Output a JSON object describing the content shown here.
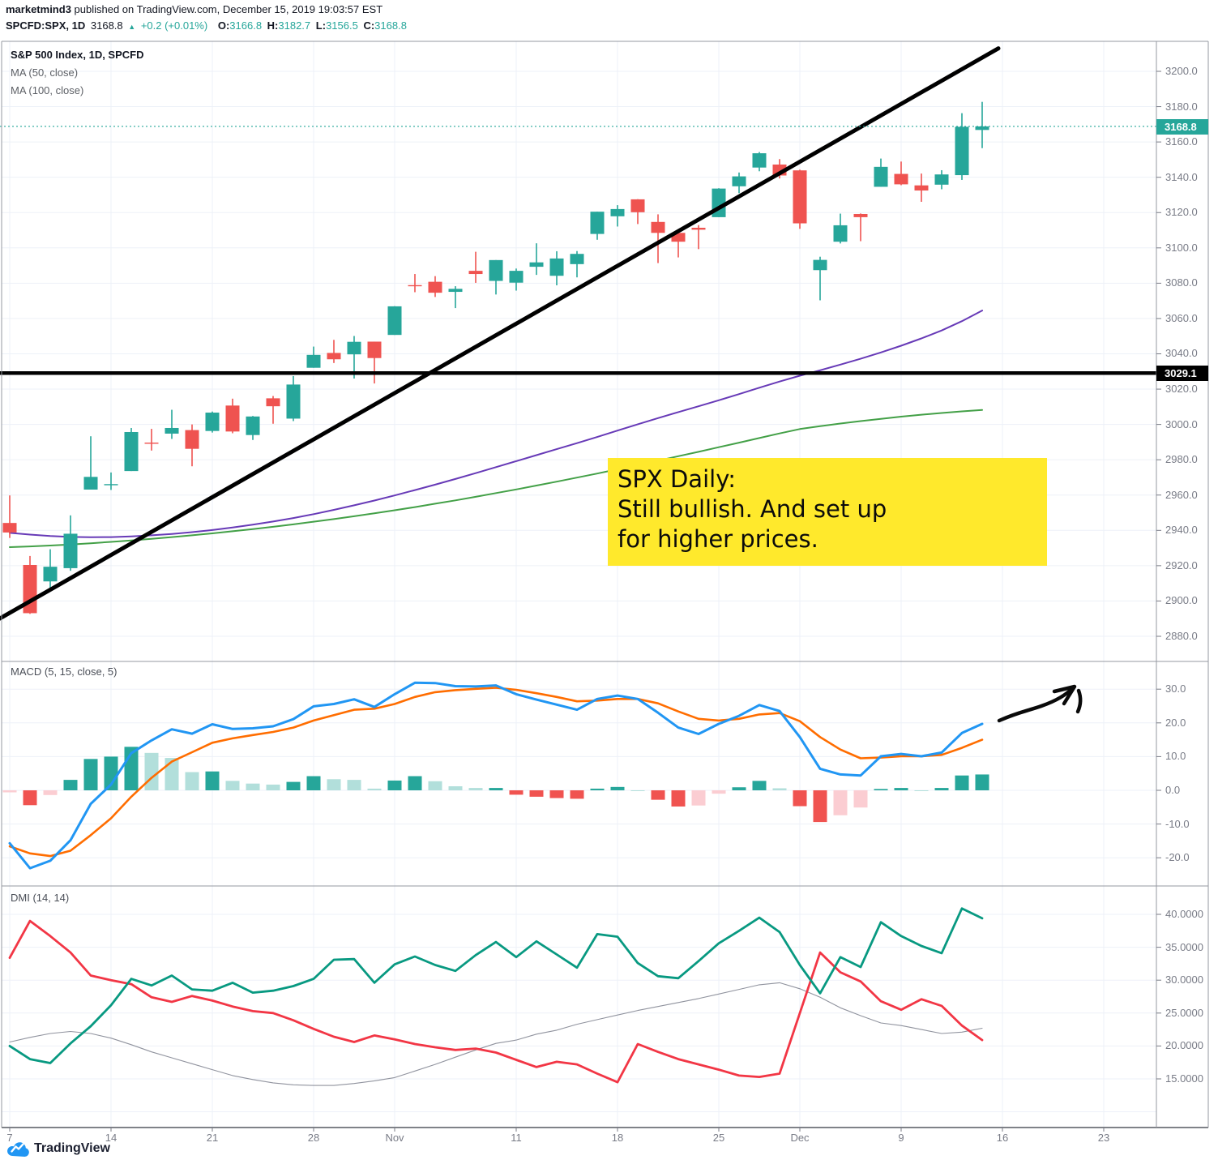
{
  "header": {
    "byline_user": "marketmind3",
    "byline_rest": " published on TradingView.com, December 15, 2019 19:03:57 EST",
    "symbol": "SPCFD:SPX, 1D",
    "last": "3168.8",
    "up_arrow": "▲",
    "change": "+0.2 (+0.01%)",
    "o_label": "O:",
    "o_value": "3166.8",
    "h_label": "H:",
    "h_value": "3182.7",
    "l_label": "L:",
    "l_value": "3156.5",
    "c_label": "C:",
    "c_value": "3168.8"
  },
  "main_pane": {
    "title": "S&P 500 Index, 1D, SPCFD",
    "ma1_label": "MA (50, close)",
    "ma2_label": "MA (100, close)"
  },
  "macd_pane": {
    "title": "MACD (5, 15, close, 5)"
  },
  "dmi_pane": {
    "title": "DMI (14, 14)"
  },
  "note": {
    "line1": "SPX Daily:",
    "line2": "Still bullish. And set up",
    "line3": "for higher prices."
  },
  "badges": {
    "close": "3168.8",
    "level": "3029.1"
  },
  "footer": {
    "brand": "TradingView"
  },
  "axes": {
    "price_ticks": [
      {
        "text": "3200.0",
        "value": 3200
      },
      {
        "text": "3180.0",
        "value": 3180
      },
      {
        "text": "3160.0",
        "value": 3160
      },
      {
        "text": "3140.0",
        "value": 3140
      },
      {
        "text": "3120.0",
        "value": 3120
      },
      {
        "text": "3100.0",
        "value": 3100
      },
      {
        "text": "3080.0",
        "value": 3080
      },
      {
        "text": "3060.0",
        "value": 3060
      },
      {
        "text": "3040.0",
        "value": 3040
      },
      {
        "text": "3020.0",
        "value": 3020
      },
      {
        "text": "3000.0",
        "value": 3000
      },
      {
        "text": "2980.0",
        "value": 2980
      },
      {
        "text": "2960.0",
        "value": 2960
      },
      {
        "text": "2940.0",
        "value": 2940
      },
      {
        "text": "2920.0",
        "value": 2920
      },
      {
        "text": "2900.0",
        "value": 2900
      },
      {
        "text": "2880.0",
        "value": 2880
      }
    ],
    "macd_ticks": [
      {
        "text": "30.0",
        "value": 30
      },
      {
        "text": "20.0",
        "value": 20
      },
      {
        "text": "10.0",
        "value": 10
      },
      {
        "text": "0.0",
        "value": 0
      },
      {
        "text": "-10.0",
        "value": -10
      },
      {
        "text": "-20.0",
        "value": -20
      }
    ],
    "dmi_ticks": [
      {
        "text": "40.0000",
        "value": 40
      },
      {
        "text": "35.0000",
        "value": 35
      },
      {
        "text": "30.0000",
        "value": 30
      },
      {
        "text": "25.0000",
        "value": 25
      },
      {
        "text": "20.0000",
        "value": 20
      },
      {
        "text": "15.0000",
        "value": 15
      }
    ],
    "dmi_grid_extra": [
      10
    ],
    "time_labels": [
      {
        "text": "7",
        "index": 0
      },
      {
        "text": "14",
        "index": 5
      },
      {
        "text": "21",
        "index": 10
      },
      {
        "text": "28",
        "index": 15
      },
      {
        "text": "Nov",
        "index": 19
      },
      {
        "text": "11",
        "index": 25
      },
      {
        "text": "18",
        "index": 30
      },
      {
        "text": "25",
        "index": 35
      },
      {
        "text": "Dec",
        "index": 39
      },
      {
        "text": "9",
        "index": 44
      },
      {
        "text": "16",
        "index": 49
      },
      {
        "text": "23",
        "index": 54
      }
    ]
  },
  "chart_data": {
    "type": "candlestick-with-indicators",
    "symbol": "SPCFD:SPX",
    "interval": "1D",
    "panes": [
      "price",
      "MACD (5,15,close,5)",
      "DMI (14,14)"
    ],
    "price_range": [
      2880,
      3200
    ],
    "macd_range": [
      -20,
      30
    ],
    "dmi_range": [
      15,
      40
    ],
    "candles_ohlc": [
      [
        2944.2,
        2959.8,
        2935.7,
        2938.8
      ],
      [
        2920.4,
        2925.5,
        2892.7,
        2893.1
      ],
      [
        2911.1,
        2929.3,
        2907.4,
        2919.4
      ],
      [
        2918.6,
        2948.5,
        2917.1,
        2938.1
      ],
      [
        2963.1,
        2993.3,
        2963.1,
        2970.3
      ],
      [
        2965.8,
        2972.8,
        2962.9,
        2966.2
      ],
      [
        2973.6,
        2998.0,
        2973.6,
        2995.7
      ],
      [
        2989.7,
        2997.5,
        2985.2,
        2989.6
      ],
      [
        2994.8,
        3008.3,
        2991.8,
        2998.0
      ],
      [
        2996.8,
        3000.0,
        2976.3,
        2986.2
      ],
      [
        2996.3,
        3007.3,
        2995.4,
        3006.7
      ],
      [
        3010.7,
        3014.6,
        2995.0,
        2996.0
      ],
      [
        2994.0,
        3004.8,
        2991.2,
        3004.5
      ],
      [
        3014.8,
        3016.1,
        3000.4,
        3010.3
      ],
      [
        3003.3,
        3027.4,
        3001.9,
        3022.6
      ],
      [
        3032.1,
        3044.1,
        3032.1,
        3039.4
      ],
      [
        3040.5,
        3047.9,
        3034.8,
        3036.9
      ],
      [
        3039.7,
        3050.1,
        3026.0,
        3046.8
      ],
      [
        3046.9,
        3046.9,
        3023.2,
        3037.6
      ],
      [
        3050.7,
        3067.0,
        3050.7,
        3066.9
      ],
      [
        3078.9,
        3085.2,
        3074.9,
        3078.3
      ],
      [
        3080.8,
        3084.0,
        3072.2,
        3074.6
      ],
      [
        3075.1,
        3078.3,
        3065.9,
        3076.8
      ],
      [
        3087.0,
        3097.8,
        3080.2,
        3085.2
      ],
      [
        3081.3,
        3093.1,
        3073.6,
        3093.1
      ],
      [
        3080.3,
        3088.3,
        3075.8,
        3087.0
      ],
      [
        3089.3,
        3102.6,
        3084.7,
        3091.8
      ],
      [
        3084.2,
        3098.1,
        3078.8,
        3094.0
      ],
      [
        3090.8,
        3098.2,
        3083.3,
        3096.6
      ],
      [
        3107.9,
        3120.5,
        3104.6,
        3120.5
      ],
      [
        3117.9,
        3124.2,
        3112.1,
        3122.0
      ],
      [
        3127.5,
        3127.6,
        3113.5,
        3120.2
      ],
      [
        3114.7,
        3119.0,
        3091.4,
        3108.5
      ],
      [
        3108.5,
        3110.1,
        3094.6,
        3103.5
      ],
      [
        3111.4,
        3112.9,
        3099.3,
        3110.3
      ],
      [
        3117.4,
        3133.8,
        3117.4,
        3133.6
      ],
      [
        3134.9,
        3142.7,
        3131.0,
        3140.5
      ],
      [
        3145.5,
        3154.3,
        3143.4,
        3153.6
      ],
      [
        3147.2,
        3150.3,
        3139.3,
        3141.0
      ],
      [
        3143.9,
        3144.3,
        3110.8,
        3113.9
      ],
      [
        3087.4,
        3095.0,
        3070.3,
        3093.2
      ],
      [
        3103.5,
        3119.4,
        3102.5,
        3112.8
      ],
      [
        3119.2,
        3119.5,
        3103.8,
        3117.4
      ],
      [
        3134.6,
        3150.6,
        3134.6,
        3145.9
      ],
      [
        3141.9,
        3148.9,
        3135.5,
        3136.0
      ],
      [
        3135.4,
        3142.1,
        3126.1,
        3132.5
      ],
      [
        3135.8,
        3144.0,
        3133.2,
        3141.6
      ],
      [
        3141.2,
        3176.3,
        3138.5,
        3168.6
      ],
      [
        3166.8,
        3182.7,
        3156.5,
        3168.8
      ]
    ],
    "ma50": [
      2938.6,
      2937.6,
      2936.8,
      2936.3,
      2936.1,
      2936.2,
      2936.6,
      2937.2,
      2938.0,
      2939.0,
      2940.2,
      2941.6,
      2943.2,
      2945.0,
      2947.0,
      2949.2,
      2951.6,
      2954.2,
      2956.9,
      2959.8,
      2962.8,
      2965.9,
      2969.1,
      2972.4,
      2975.8,
      2979.2,
      2982.6,
      2986.0,
      2989.4,
      2992.9,
      2996.5,
      3000.1,
      3003.6,
      3007.0,
      3010.3,
      3013.7,
      3017.2,
      3020.8,
      3024.3,
      3027.6,
      3030.7,
      3033.9,
      3037.2,
      3040.8,
      3044.6,
      3048.7,
      3053.2,
      3058.5,
      3064.5
    ],
    "ma100": [
      2930.5,
      2930.9,
      2931.4,
      2932.0,
      2932.7,
      2933.5,
      2934.3,
      2935.2,
      2936.2,
      2937.2,
      2938.3,
      2939.5,
      2940.7,
      2942.0,
      2943.4,
      2944.9,
      2946.4,
      2948.0,
      2949.7,
      2951.4,
      2953.2,
      2955.1,
      2957.0,
      2959.0,
      2961.1,
      2963.2,
      2965.4,
      2967.6,
      2969.9,
      2972.2,
      2974.6,
      2977.0,
      2979.5,
      2982.0,
      2984.5,
      2987.1,
      2989.7,
      2992.3,
      2994.9,
      2997.4,
      2999.0,
      3000.5,
      3001.9,
      3003.2,
      3004.4,
      3005.5,
      3006.5,
      3007.4,
      3008.2
    ],
    "macd": [
      -15.7,
      -23.1,
      -20.9,
      -14.8,
      -4.0,
      1.7,
      11.0,
      14.8,
      18.1,
      16.8,
      19.6,
      18.2,
      18.4,
      19.0,
      21.1,
      24.9,
      25.6,
      27.0,
      24.7,
      28.5,
      31.9,
      31.8,
      30.9,
      30.8,
      31.1,
      28.5,
      26.9,
      25.4,
      23.9,
      27.1,
      28.1,
      27.1,
      23.0,
      18.6,
      16.7,
      19.7,
      22.1,
      25.3,
      23.5,
      15.8,
      6.4,
      4.7,
      4.4,
      10.1,
      10.8,
      10.1,
      11.2,
      17.0,
      19.7
    ],
    "macd_signal": [
      -16.6,
      -18.7,
      -19.5,
      -17.9,
      -13.3,
      -8.3,
      -1.9,
      3.7,
      8.5,
      11.3,
      14.1,
      15.4,
      16.4,
      17.3,
      18.6,
      20.7,
      22.3,
      23.9,
      24.2,
      25.6,
      27.7,
      29.1,
      29.7,
      30.1,
      30.4,
      29.8,
      28.8,
      27.7,
      26.4,
      26.6,
      27.1,
      27.1,
      25.8,
      23.4,
      21.2,
      20.7,
      21.2,
      22.5,
      22.9,
      20.5,
      15.8,
      12.1,
      9.5,
      9.7,
      10.1,
      10.1,
      10.5,
      12.6,
      15.0
    ],
    "macd_hist": [
      -0.6,
      -4.4,
      -1.4,
      3.1,
      9.3,
      10.0,
      12.9,
      11.1,
      9.6,
      5.4,
      5.6,
      2.8,
      2.0,
      1.7,
      2.5,
      4.2,
      3.3,
      3.1,
      0.5,
      2.9,
      4.2,
      2.7,
      1.2,
      0.7,
      0.7,
      -1.3,
      -1.9,
      -2.3,
      -2.5,
      0.5,
      1.0,
      0.0,
      -2.8,
      -4.8,
      -4.5,
      -1.0,
      0.9,
      2.8,
      0.6,
      -4.7,
      -9.4,
      -7.4,
      -5.1,
      0.4,
      0.7,
      0.0,
      0.7,
      4.4,
      4.7
    ],
    "di_plus": [
      20.0,
      18.0,
      17.4,
      20.4,
      23.0,
      26.2,
      30.2,
      29.2,
      30.7,
      28.6,
      28.4,
      29.6,
      28.1,
      28.4,
      29.1,
      30.2,
      33.1,
      33.2,
      29.6,
      32.4,
      33.6,
      32.3,
      31.4,
      33.8,
      35.8,
      33.5,
      35.9,
      33.9,
      31.9,
      37.0,
      36.6,
      32.6,
      30.6,
      30.3,
      32.9,
      35.6,
      37.5,
      39.5,
      37.3,
      32.3,
      28.0,
      33.5,
      32.0,
      38.8,
      36.7,
      35.2,
      34.1,
      40.9,
      39.4
    ],
    "di_minus": [
      33.4,
      39.0,
      36.7,
      34.2,
      30.7,
      30.0,
      29.4,
      27.4,
      26.7,
      27.6,
      26.9,
      26.0,
      25.3,
      25.0,
      23.9,
      22.6,
      21.4,
      20.6,
      21.6,
      21.0,
      20.3,
      19.8,
      19.4,
      19.6,
      19.0,
      17.9,
      16.8,
      17.6,
      17.2,
      15.8,
      14.5,
      20.3,
      19.1,
      18.0,
      17.2,
      16.4,
      15.5,
      15.3,
      15.8,
      25.0,
      34.2,
      31.2,
      29.8,
      26.8,
      25.5,
      27.1,
      26.1,
      23.1,
      20.9
    ],
    "adx": [
      20.6,
      21.3,
      21.9,
      22.2,
      21.9,
      21.2,
      20.2,
      19.1,
      18.2,
      17.3,
      16.4,
      15.5,
      14.9,
      14.4,
      14.1,
      14.0,
      14.0,
      14.3,
      14.7,
      15.2,
      16.2,
      17.2,
      18.3,
      19.4,
      20.4,
      20.9,
      21.8,
      22.4,
      23.3,
      24.0,
      24.7,
      25.4,
      26.0,
      26.6,
      27.2,
      27.9,
      28.6,
      29.3,
      29.6,
      28.7,
      27.4,
      25.8,
      24.6,
      23.5,
      23.1,
      22.5,
      21.9,
      22.1,
      22.7
    ],
    "trendline_price": {
      "x1_index": -0.5,
      "value1": 2890.0,
      "x2_index": 48.8,
      "value2": 3213.0
    },
    "horizontal_level": 3029.1,
    "last_close_level": 3168.8
  },
  "colors": {
    "up": "#26a69a",
    "down": "#ef5350",
    "hist_up": "#26a69a",
    "hist_up_weak": "#b2dfdb",
    "hist_dn": "#f05350",
    "hist_dn_weak": "#fbcdd2",
    "macd": "#2196f3",
    "signal": "#ff6d00",
    "di_plus": "#089981",
    "di_minus": "#f23645",
    "adx": "#90939e",
    "ma50": "#673ab7",
    "ma100": "#43a047",
    "grid": "#edf1f8",
    "frame": "#9598a1",
    "axis_text": "#787b86",
    "trend": "#000000",
    "note_bg": "#ffe92c",
    "badge_close_bg": "#26a69a",
    "badge_level_bg": "#000000"
  }
}
